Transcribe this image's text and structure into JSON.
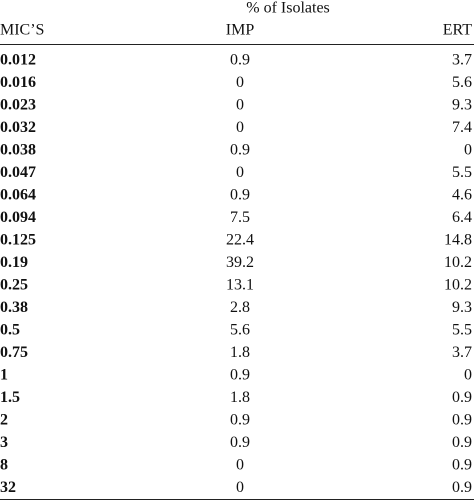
{
  "table": {
    "group_header": "% of Isolates",
    "columns": [
      "MIC’S",
      "IMP",
      "ERT"
    ],
    "rows": [
      [
        "0.012",
        "0.9",
        "3.7"
      ],
      [
        "0.016",
        "0",
        "5.6"
      ],
      [
        "0.023",
        "0",
        "9.3"
      ],
      [
        "0.032",
        "0",
        "7.4"
      ],
      [
        "0.038",
        "0.9",
        "0"
      ],
      [
        "0.047",
        "0",
        "5.5"
      ],
      [
        "0.064",
        "0.9",
        "4.6"
      ],
      [
        "0.094",
        "7.5",
        "6.4"
      ],
      [
        "0.125",
        "22.4",
        "14.8"
      ],
      [
        "0.19",
        "39.2",
        "10.2"
      ],
      [
        "0.25",
        "13.1",
        "10.2"
      ],
      [
        "0.38",
        "2.8",
        "9.3"
      ],
      [
        "0.5",
        "5.6",
        "5.5"
      ],
      [
        "0.75",
        "1.8",
        "3.7"
      ],
      [
        "1",
        "0.9",
        "0"
      ],
      [
        "1.5",
        "1.8",
        "0.9"
      ],
      [
        "2",
        "0.9",
        "0.9"
      ],
      [
        "3",
        "0.9",
        "0.9"
      ],
      [
        "8",
        "0",
        "0.9"
      ],
      [
        "32",
        "0",
        "0.9"
      ]
    ]
  }
}
